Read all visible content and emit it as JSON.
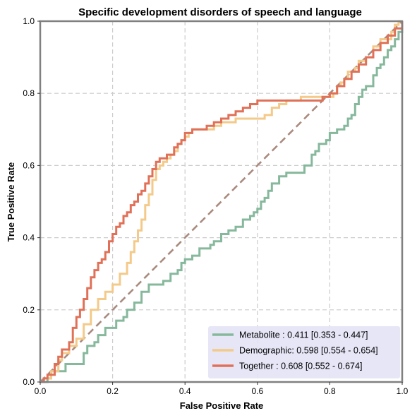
{
  "chart_data": {
    "type": "line",
    "title": "Specific development disorders of speech and language",
    "xlabel": "False Positive Rate",
    "ylabel": "True Positive Rate",
    "xlim": [
      0,
      1
    ],
    "ylim": [
      0,
      1
    ],
    "xticks": [
      "0.0",
      "0.2",
      "0.4",
      "0.6",
      "0.8",
      "1.0"
    ],
    "yticks": [
      "0.0",
      "0.2",
      "0.4",
      "0.6",
      "0.8",
      "1.0"
    ],
    "grid": true,
    "legend_position": "lower-right",
    "diagonal": {
      "x": [
        0,
        1
      ],
      "y": [
        0,
        1
      ],
      "color": "#a98a7e",
      "style": "dashed"
    },
    "series": [
      {
        "name": "Metabolite",
        "legend_label": "Metabolite     : 0.411 [0.353 - 0.447]",
        "color": "#86b89c",
        "x": [
          0,
          0.02,
          0.03,
          0.06,
          0.07,
          0.1,
          0.12,
          0.13,
          0.15,
          0.16,
          0.18,
          0.2,
          0.21,
          0.23,
          0.24,
          0.26,
          0.28,
          0.3,
          0.31,
          0.34,
          0.36,
          0.38,
          0.39,
          0.4,
          0.41,
          0.42,
          0.44,
          0.46,
          0.47,
          0.48,
          0.5,
          0.52,
          0.54,
          0.56,
          0.58,
          0.59,
          0.6,
          0.61,
          0.62,
          0.63,
          0.64,
          0.66,
          0.68,
          0.7,
          0.72,
          0.73,
          0.75,
          0.76,
          0.77,
          0.78,
          0.79,
          0.8,
          0.82,
          0.84,
          0.85,
          0.86,
          0.87,
          0.88,
          0.89,
          0.9,
          0.92,
          0.93,
          0.94,
          0.95,
          0.96,
          0.97,
          0.98,
          0.99,
          1.0
        ],
        "y": [
          0,
          0.01,
          0.03,
          0.03,
          0.05,
          0.05,
          0.08,
          0.1,
          0.11,
          0.13,
          0.15,
          0.15,
          0.17,
          0.18,
          0.2,
          0.22,
          0.25,
          0.27,
          0.27,
          0.28,
          0.3,
          0.31,
          0.33,
          0.34,
          0.34,
          0.35,
          0.37,
          0.37,
          0.38,
          0.39,
          0.41,
          0.42,
          0.43,
          0.45,
          0.46,
          0.47,
          0.48,
          0.5,
          0.51,
          0.53,
          0.55,
          0.57,
          0.58,
          0.58,
          0.58,
          0.6,
          0.63,
          0.64,
          0.66,
          0.66,
          0.67,
          0.69,
          0.7,
          0.71,
          0.73,
          0.74,
          0.77,
          0.79,
          0.81,
          0.82,
          0.85,
          0.87,
          0.88,
          0.9,
          0.92,
          0.93,
          0.95,
          0.97,
          1.0
        ]
      },
      {
        "name": "Demographic",
        "legend_label": "Demographic: 0.598 [0.554 - 0.654]",
        "color": "#f3ca89",
        "x": [
          0,
          0.01,
          0.03,
          0.05,
          0.06,
          0.08,
          0.1,
          0.12,
          0.14,
          0.16,
          0.18,
          0.2,
          0.22,
          0.24,
          0.25,
          0.26,
          0.27,
          0.28,
          0.29,
          0.3,
          0.31,
          0.32,
          0.33,
          0.34,
          0.35,
          0.36,
          0.37,
          0.38,
          0.39,
          0.4,
          0.41,
          0.42,
          0.44,
          0.46,
          0.48,
          0.5,
          0.52,
          0.54,
          0.56,
          0.58,
          0.6,
          0.62,
          0.64,
          0.66,
          0.68,
          0.7,
          0.72,
          0.74,
          0.76,
          0.78,
          0.8,
          0.81,
          0.82,
          0.83,
          0.84,
          0.85,
          0.86,
          0.87,
          0.88,
          0.9,
          0.92,
          0.94,
          0.95,
          0.96,
          0.97,
          0.98,
          0.99,
          1.0
        ],
        "y": [
          0,
          0.01,
          0.03,
          0.06,
          0.08,
          0.1,
          0.12,
          0.16,
          0.2,
          0.23,
          0.25,
          0.27,
          0.3,
          0.33,
          0.36,
          0.39,
          0.42,
          0.45,
          0.49,
          0.52,
          0.56,
          0.59,
          0.6,
          0.61,
          0.62,
          0.63,
          0.64,
          0.66,
          0.67,
          0.68,
          0.69,
          0.7,
          0.7,
          0.7,
          0.71,
          0.72,
          0.72,
          0.73,
          0.73,
          0.73,
          0.73,
          0.74,
          0.76,
          0.77,
          0.78,
          0.78,
          0.79,
          0.79,
          0.79,
          0.79,
          0.79,
          0.8,
          0.82,
          0.83,
          0.84,
          0.86,
          0.86,
          0.87,
          0.89,
          0.9,
          0.93,
          0.95,
          0.95,
          0.95,
          0.97,
          0.99,
          1.0,
          1.0
        ]
      },
      {
        "name": "Together",
        "legend_label": "Together       : 0.608 [0.552 - 0.674]",
        "color": "#e07158",
        "x": [
          0,
          0.01,
          0.02,
          0.04,
          0.05,
          0.06,
          0.08,
          0.09,
          0.1,
          0.11,
          0.12,
          0.13,
          0.14,
          0.15,
          0.16,
          0.17,
          0.18,
          0.19,
          0.2,
          0.21,
          0.22,
          0.23,
          0.24,
          0.25,
          0.26,
          0.27,
          0.28,
          0.29,
          0.3,
          0.31,
          0.32,
          0.33,
          0.34,
          0.35,
          0.36,
          0.37,
          0.38,
          0.39,
          0.4,
          0.42,
          0.44,
          0.46,
          0.48,
          0.5,
          0.52,
          0.54,
          0.56,
          0.58,
          0.6,
          0.62,
          0.64,
          0.66,
          0.68,
          0.7,
          0.72,
          0.74,
          0.76,
          0.78,
          0.8,
          0.82,
          0.84,
          0.86,
          0.88,
          0.9,
          0.92,
          0.94,
          0.96,
          0.98,
          1.0
        ],
        "y": [
          0,
          0.01,
          0.02,
          0.05,
          0.07,
          0.09,
          0.11,
          0.15,
          0.18,
          0.2,
          0.23,
          0.26,
          0.29,
          0.31,
          0.33,
          0.34,
          0.36,
          0.39,
          0.41,
          0.43,
          0.44,
          0.46,
          0.47,
          0.49,
          0.5,
          0.52,
          0.53,
          0.55,
          0.57,
          0.59,
          0.61,
          0.62,
          0.62,
          0.63,
          0.63,
          0.65,
          0.66,
          0.67,
          0.69,
          0.7,
          0.7,
          0.71,
          0.72,
          0.73,
          0.74,
          0.75,
          0.76,
          0.77,
          0.78,
          0.78,
          0.78,
          0.78,
          0.78,
          0.78,
          0.78,
          0.78,
          0.78,
          0.79,
          0.8,
          0.82,
          0.84,
          0.86,
          0.88,
          0.9,
          0.92,
          0.94,
          0.96,
          0.98,
          1.0
        ]
      }
    ]
  }
}
